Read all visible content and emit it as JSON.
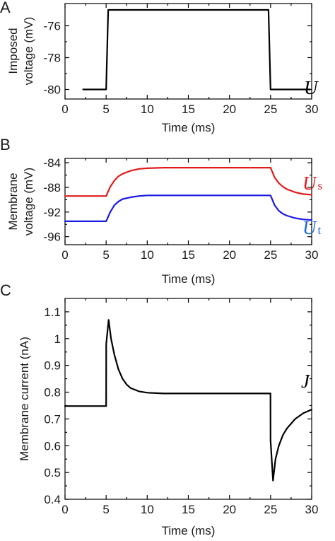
{
  "chart_data": [
    {
      "panel": "A",
      "type": "line",
      "xlabel": "Time (ms)",
      "ylabel": [
        "Imposed",
        "voltage (mV)"
      ],
      "xlim": [
        0,
        30
      ],
      "ylim": [
        -80.6,
        -74.6
      ],
      "xticks": [
        0,
        5,
        10,
        15,
        20,
        25,
        30
      ],
      "yticks": [
        -80,
        -78,
        -76
      ],
      "series": [
        {
          "name": "U",
          "color": "#000000",
          "x": [
            2.2,
            5.0,
            5.25,
            24.75,
            25.0,
            29.8
          ],
          "y": [
            -80,
            -80,
            -75,
            -75,
            -80,
            -80
          ]
        }
      ]
    },
    {
      "panel": "B",
      "type": "line",
      "xlabel": "Time (ms)",
      "ylabel": [
        "Membrane",
        "voltage (mV)"
      ],
      "xlim": [
        0,
        30
      ],
      "ylim": [
        -97.3,
        -83.3
      ],
      "xticks": [
        0,
        5,
        10,
        15,
        20,
        25,
        30
      ],
      "yticks": [
        -96,
        -92,
        -88,
        -84
      ],
      "series": [
        {
          "name": "U",
          "name_sub": "s",
          "color": "#e01b1b",
          "x": [
            0,
            5,
            5.5,
            6,
            6.5,
            7,
            8,
            9,
            10,
            12,
            14,
            18,
            22,
            25,
            25.5,
            26,
            26.5,
            27,
            28,
            29,
            30
          ],
          "y": [
            -89.4,
            -89.4,
            -87.9,
            -86.9,
            -86.2,
            -85.8,
            -85.3,
            -85.0,
            -84.9,
            -84.8,
            -84.8,
            -84.8,
            -84.8,
            -84.8,
            -86.4,
            -87.3,
            -87.9,
            -88.3,
            -88.8,
            -89.1,
            -89.2
          ]
        },
        {
          "name": "U",
          "name_sub": "t",
          "color": "#1a1ae0",
          "x": [
            0,
            5,
            5.5,
            6,
            6.5,
            7,
            8,
            9,
            10,
            12,
            14,
            18,
            22,
            25,
            25.5,
            26,
            26.5,
            27,
            28,
            29,
            30
          ],
          "y": [
            -93.5,
            -93.5,
            -92.0,
            -90.9,
            -90.3,
            -89.9,
            -89.6,
            -89.4,
            -89.3,
            -89.3,
            -89.3,
            -89.3,
            -89.3,
            -89.3,
            -90.9,
            -91.8,
            -92.3,
            -92.6,
            -93.0,
            -93.2,
            -93.3
          ]
        }
      ]
    },
    {
      "panel": "C",
      "type": "line",
      "xlabel": "Time (ms)",
      "ylabel": [
        "Membrane current (nA)"
      ],
      "xlim": [
        0,
        30
      ],
      "ylim": [
        0.4,
        1.15
      ],
      "xticks": [
        0,
        5,
        10,
        15,
        20,
        25,
        30
      ],
      "yticks": [
        0.4,
        0.5,
        0.6,
        0.7,
        0.8,
        0.9,
        1.0,
        1.1
      ],
      "series": [
        {
          "name": "J",
          "color": "#000000",
          "x": [
            0,
            5.0,
            5.01,
            5.3,
            5.6,
            6.0,
            6.5,
            7.0,
            7.5,
            8.0,
            9.0,
            10.0,
            12.0,
            15.0,
            20.0,
            24.99,
            25.0,
            25.3,
            25.6,
            26.0,
            26.5,
            27.0,
            28.0,
            29.0,
            30.0
          ],
          "y": [
            0.748,
            0.748,
            0.98,
            1.07,
            1.0,
            0.94,
            0.885,
            0.85,
            0.828,
            0.815,
            0.803,
            0.798,
            0.795,
            0.795,
            0.795,
            0.795,
            0.62,
            0.47,
            0.55,
            0.6,
            0.64,
            0.665,
            0.7,
            0.722,
            0.735
          ]
        }
      ]
    }
  ]
}
